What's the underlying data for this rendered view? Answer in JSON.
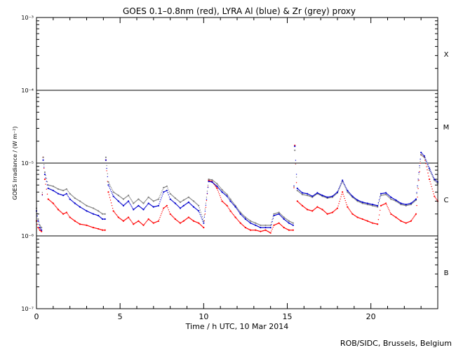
{
  "title": "GOES 0.1–0.8nm (red), LYRA Al (blue) & Zr (grey) proxy",
  "credit": "ROB/SIDC, Brussels, Belgium",
  "colors": {
    "goes": "#ff0000",
    "lyra_al": "#0000cc",
    "lyra_zr": "#808080",
    "axis": "#000000"
  },
  "chart_data": {
    "type": "scatter",
    "xlabel": "Time / h UTC, 10 Mar 2014",
    "ylabel": "GOES Irradiance / (W m⁻²)",
    "xlim": [
      0,
      24
    ],
    "ylim": [
      1e-07,
      0.001
    ],
    "yscale": "log",
    "x_ticks": [
      0,
      5,
      10,
      15,
      20
    ],
    "x_tick_labels": [
      "0",
      "5",
      "10",
      "15",
      "20"
    ],
    "y_ticks": [
      1e-07,
      1e-06,
      1e-05,
      0.0001,
      0.001
    ],
    "y_tick_labels": [
      "10⁻⁷",
      "10⁻⁶",
      "10⁻⁵",
      "10⁻⁴",
      "10⁻³"
    ],
    "flare_class_lines": [
      1e-06,
      1e-05,
      0.0001
    ],
    "flare_classes": [
      {
        "label": "X",
        "y": 0.000316
      },
      {
        "label": "M",
        "y": 3.16e-05
      },
      {
        "label": "C",
        "y": 3.16e-06
      },
      {
        "label": "B",
        "y": 3.16e-07
      }
    ],
    "grid": false,
    "series": [
      {
        "key": "goes",
        "x": [
          0,
          0.1,
          0.2,
          0.3,
          0.4,
          0.5,
          0.7,
          1.0,
          1.3,
          1.6,
          1.8,
          2.0,
          2.3,
          2.6,
          3.0,
          3.4,
          3.7,
          3.95,
          4.1,
          4.15,
          4.3,
          4.6,
          4.9,
          5.2,
          5.5,
          5.8,
          6.1,
          6.4,
          6.7,
          7.0,
          7.3,
          7.6,
          7.8,
          8.0,
          8.3,
          8.6,
          8.8,
          9.1,
          9.4,
          9.7,
          10.0,
          10.3,
          10.5,
          10.8,
          11.1,
          11.4,
          11.6,
          11.9,
          12.2,
          12.5,
          12.8,
          13.1,
          13.4,
          13.7,
          14.0,
          14.2,
          14.5,
          14.8,
          15.1,
          15.35,
          15.45,
          15.6,
          15.9,
          16.2,
          16.5,
          16.8,
          17.1,
          17.4,
          17.7,
          18.0,
          18.3,
          18.6,
          18.9,
          19.2,
          19.5,
          19.8,
          20.1,
          20.4,
          20.6,
          20.9,
          21.2,
          21.5,
          21.8,
          22.1,
          22.4,
          22.7,
          23.0,
          23.2,
          23.5,
          23.8,
          24.0
        ],
        "y": [
          1.6e-06,
          1.3e-06,
          1.2e-06,
          1.15e-06,
          1.2e-05,
          6e-06,
          3.2e-06,
          2.8e-06,
          2.3e-06,
          2e-06,
          2.1e-06,
          1.8e-06,
          1.6e-06,
          1.45e-06,
          1.4e-06,
          1.3e-06,
          1.25e-06,
          1.2e-06,
          1.2e-06,
          1.1e-05,
          4e-06,
          2.2e-06,
          1.8e-06,
          1.6e-06,
          1.8e-06,
          1.45e-06,
          1.6e-06,
          1.4e-06,
          1.7e-06,
          1.5e-06,
          1.6e-06,
          2.4e-06,
          2.6e-06,
          2e-06,
          1.7e-06,
          1.5e-06,
          1.6e-06,
          1.8e-06,
          1.6e-06,
          1.5e-06,
          1.3e-06,
          5.8e-06,
          5.6e-06,
          4.5e-06,
          3e-06,
          2.6e-06,
          2.2e-06,
          1.8e-06,
          1.5e-06,
          1.3e-06,
          1.2e-06,
          1.2e-06,
          1.15e-06,
          1.2e-06,
          1.1e-06,
          1.4e-06,
          1.5e-06,
          1.3e-06,
          1.2e-06,
          1.2e-06,
          1.75e-05,
          3e-06,
          2.6e-06,
          2.3e-06,
          2.2e-06,
          2.5e-06,
          2.3e-06,
          2e-06,
          2.1e-06,
          2.4e-06,
          4e-06,
          2.5e-06,
          2e-06,
          1.8e-06,
          1.7e-06,
          1.6e-06,
          1.5e-06,
          1.45e-06,
          2.6e-06,
          2.8e-06,
          2e-06,
          1.8e-06,
          1.6e-06,
          1.5e-06,
          1.6e-06,
          2e-06,
          1.3e-05,
          1.2e-05,
          6e-06,
          3.5e-06,
          3e-06
        ]
      },
      {
        "key": "lyra_al",
        "x": [
          0,
          0.1,
          0.2,
          0.3,
          0.4,
          0.5,
          0.7,
          1.0,
          1.3,
          1.6,
          1.8,
          2.0,
          2.3,
          2.6,
          3.0,
          3.4,
          3.7,
          3.95,
          4.1,
          4.15,
          4.3,
          4.6,
          4.9,
          5.2,
          5.5,
          5.8,
          6.1,
          6.4,
          6.7,
          7.0,
          7.3,
          7.6,
          7.8,
          8.0,
          8.3,
          8.6,
          8.8,
          9.1,
          9.4,
          9.7,
          10.0,
          10.3,
          10.5,
          10.8,
          11.1,
          11.4,
          11.6,
          11.9,
          12.2,
          12.5,
          12.8,
          13.1,
          13.4,
          13.7,
          14.0,
          14.2,
          14.5,
          14.8,
          15.1,
          15.35,
          15.45,
          15.6,
          15.9,
          16.2,
          16.5,
          16.8,
          17.1,
          17.4,
          17.7,
          18.0,
          18.3,
          18.6,
          18.9,
          19.2,
          19.5,
          19.8,
          20.1,
          20.4,
          20.6,
          20.9,
          21.2,
          21.5,
          21.8,
          22.1,
          22.4,
          22.7,
          23.0,
          23.2,
          23.5,
          23.8,
          24.0
        ],
        "y": [
          2.2e-06,
          1.6e-06,
          1.3e-06,
          1.2e-06,
          1.1e-05,
          7e-06,
          4.5e-06,
          4.2e-06,
          3.8e-06,
          3.6e-06,
          3.8e-06,
          3.2e-06,
          2.8e-06,
          2.5e-06,
          2.2e-06,
          2e-06,
          1.9e-06,
          1.7e-06,
          1.7e-06,
          1.1e-05,
          5e-06,
          3.5e-06,
          3e-06,
          2.6e-06,
          3e-06,
          2.3e-06,
          2.6e-06,
          2.3e-06,
          2.8e-06,
          2.5e-06,
          2.6e-06,
          4e-06,
          4.2e-06,
          3.2e-06,
          2.8e-06,
          2.4e-06,
          2.6e-06,
          2.9e-06,
          2.5e-06,
          2.2e-06,
          1.5e-06,
          5.6e-06,
          5.5e-06,
          4.8e-06,
          4e-06,
          3.5e-06,
          3e-06,
          2.5e-06,
          2e-06,
          1.7e-06,
          1.5e-06,
          1.4e-06,
          1.3e-06,
          1.3e-06,
          1.3e-06,
          1.9e-06,
          2e-06,
          1.7e-06,
          1.5e-06,
          1.4e-06,
          1.7e-05,
          4.5e-06,
          3.9e-06,
          3.8e-06,
          3.5e-06,
          3.9e-06,
          3.6e-06,
          3.4e-06,
          3.5e-06,
          4e-06,
          5.8e-06,
          4.2e-06,
          3.5e-06,
          3.1e-06,
          2.9e-06,
          2.8e-06,
          2.7e-06,
          2.6e-06,
          3.8e-06,
          3.9e-06,
          3.4e-06,
          3.1e-06,
          2.8e-06,
          2.7e-06,
          2.8e-06,
          3.2e-06,
          1.4e-05,
          1.25e-05,
          8.5e-06,
          6e-06,
          5.5e-06
        ]
      },
      {
        "key": "lyra_zr",
        "x": [
          0,
          0.1,
          0.2,
          0.3,
          0.4,
          0.5,
          0.7,
          1.0,
          1.3,
          1.6,
          1.8,
          2.0,
          2.3,
          2.6,
          3.0,
          3.4,
          3.7,
          3.95,
          4.1,
          4.15,
          4.3,
          4.6,
          4.9,
          5.2,
          5.5,
          5.8,
          6.1,
          6.4,
          6.7,
          7.0,
          7.3,
          7.6,
          7.8,
          8.0,
          8.3,
          8.6,
          8.8,
          9.1,
          9.4,
          9.7,
          10.0,
          10.3,
          10.5,
          10.8,
          11.1,
          11.4,
          11.6,
          11.9,
          12.2,
          12.5,
          12.8,
          13.1,
          13.4,
          13.7,
          14.0,
          14.2,
          14.5,
          14.8,
          15.1,
          15.35,
          15.45,
          15.6,
          15.9,
          16.2,
          16.5,
          16.8,
          17.1,
          17.4,
          17.7,
          18.0,
          18.3,
          18.6,
          18.9,
          19.2,
          19.5,
          19.8,
          20.1,
          20.4,
          20.6,
          20.9,
          21.2,
          21.5,
          21.8,
          22.1,
          22.4,
          22.7,
          23.0,
          23.2,
          23.5,
          23.8,
          24.0
        ],
        "y": [
          2.4e-06,
          1.7e-06,
          1.4e-06,
          1.3e-06,
          1.2e-05,
          7.5e-06,
          5e-06,
          4.8e-06,
          4.4e-06,
          4.2e-06,
          4.4e-06,
          3.8e-06,
          3.3e-06,
          3e-06,
          2.6e-06,
          2.4e-06,
          2.2e-06,
          2e-06,
          2e-06,
          1.2e-05,
          5.5e-06,
          4e-06,
          3.6e-06,
          3.2e-06,
          3.6e-06,
          2.8e-06,
          3.2e-06,
          2.8e-06,
          3.4e-06,
          3e-06,
          3.2e-06,
          4.6e-06,
          4.8e-06,
          3.8e-06,
          3.3e-06,
          2.9e-06,
          3.1e-06,
          3.4e-06,
          3e-06,
          2.6e-06,
          1.6e-06,
          6e-06,
          5.9e-06,
          5.2e-06,
          4.3e-06,
          3.7e-06,
          3.2e-06,
          2.6e-06,
          2.1e-06,
          1.8e-06,
          1.6e-06,
          1.5e-06,
          1.4e-06,
          1.4e-06,
          1.4e-06,
          2e-06,
          2.1e-06,
          1.8e-06,
          1.6e-06,
          1.5e-06,
          1.5e-05,
          4.2e-06,
          3.7e-06,
          3.6e-06,
          3.4e-06,
          3.8e-06,
          3.5e-06,
          3.3e-06,
          3.4e-06,
          3.9e-06,
          5.6e-06,
          4e-06,
          3.4e-06,
          3e-06,
          2.8e-06,
          2.7e-06,
          2.6e-06,
          2.5e-06,
          3.6e-06,
          3.7e-06,
          3.2e-06,
          3e-06,
          2.7e-06,
          2.6e-06,
          2.7e-06,
          3.1e-06,
          1.3e-05,
          1.2e-05,
          8e-06,
          5.8e-06,
          5.2e-06
        ]
      }
    ]
  }
}
